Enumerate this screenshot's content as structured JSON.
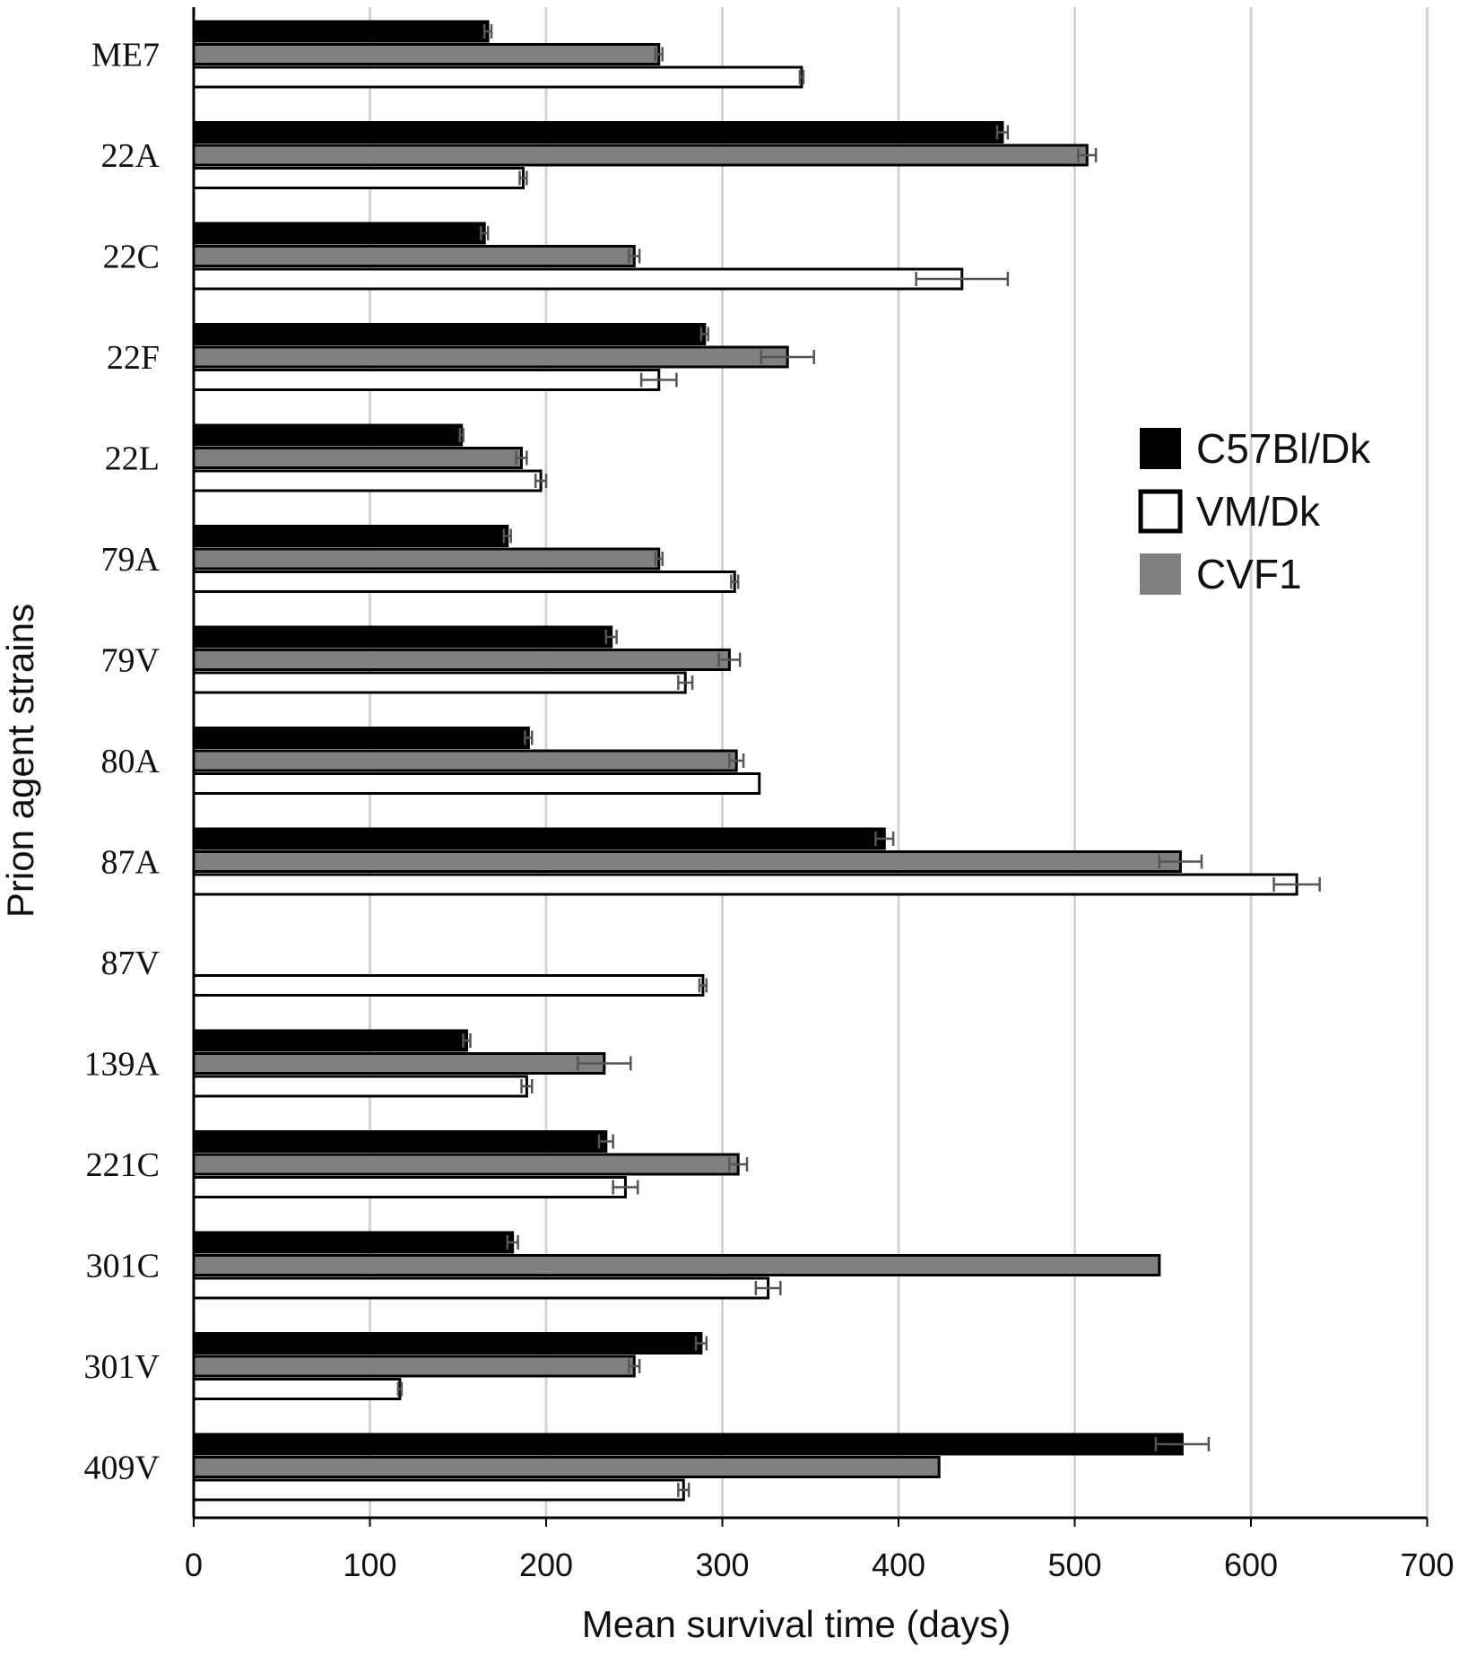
{
  "chart_data": {
    "type": "bar",
    "orientation": "horizontal",
    "xlabel": "Mean survival time (days)",
    "ylabel": "Prion agent strains",
    "xlim": [
      0,
      700
    ],
    "xticks": [
      "0",
      "100",
      "200",
      "300",
      "400",
      "500",
      "600",
      "700"
    ],
    "grid": "vertical",
    "legend_position": "right",
    "categories": [
      "ME7",
      "22A",
      "22C",
      "22F",
      "22L",
      "79A",
      "79V",
      "80A",
      "87A",
      "87V",
      "139A",
      "221C",
      "301C",
      "301V",
      "409V"
    ],
    "series": [
      {
        "name": "C57Bl/Dk",
        "color": "#000000",
        "values": [
          167,
          459,
          165,
          290,
          152,
          178,
          237,
          190,
          392,
          null,
          155,
          234,
          181,
          288,
          561
        ],
        "errors": [
          2,
          3,
          2,
          2,
          1,
          2,
          3,
          2,
          5,
          null,
          2,
          4,
          3,
          3,
          15
        ]
      },
      {
        "name": "CVF1",
        "color": "#808080",
        "values": [
          264,
          507,
          250,
          337,
          186,
          264,
          304,
          308,
          560,
          null,
          233,
          309,
          548,
          250,
          423
        ],
        "errors": [
          2,
          5,
          3,
          15,
          3,
          2,
          6,
          4,
          12,
          null,
          15,
          5,
          0,
          3,
          0
        ]
      },
      {
        "name": "VM/Dk",
        "color": "#ffffff",
        "values": [
          345,
          187,
          436,
          264,
          197,
          307,
          279,
          321,
          626,
          289,
          189,
          245,
          326,
          117,
          278
        ],
        "errors": [
          1,
          2,
          26,
          10,
          3,
          2,
          4,
          0,
          13,
          2,
          3,
          7,
          7,
          1,
          3
        ]
      }
    ],
    "legend_order": [
      "C57Bl/Dk",
      "VM/Dk",
      "CVF1"
    ]
  }
}
